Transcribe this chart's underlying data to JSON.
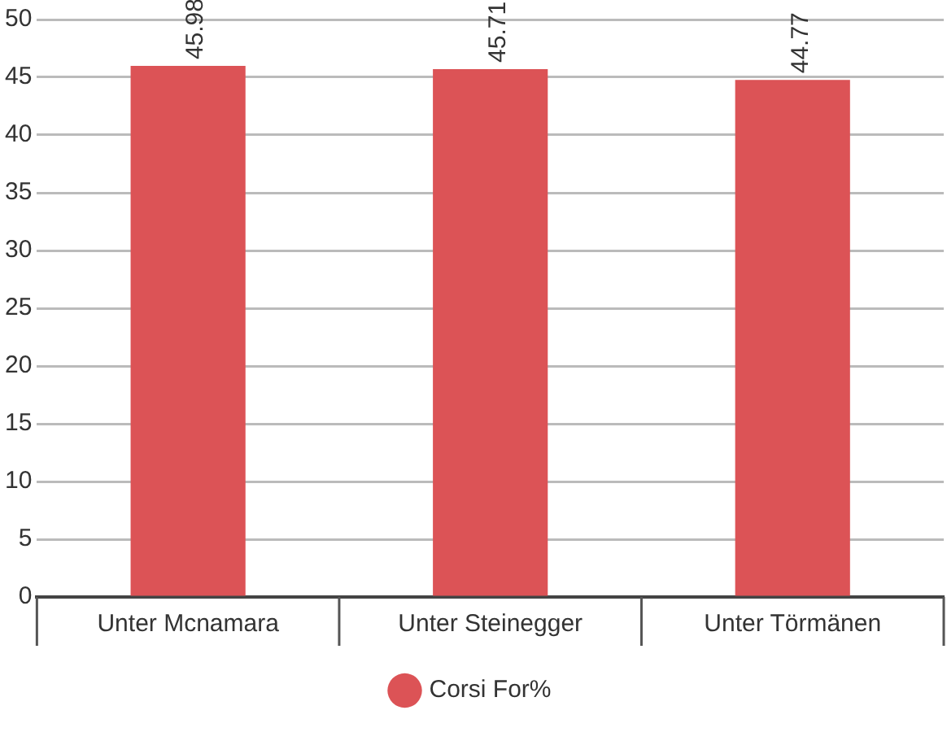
{
  "chart_data": {
    "type": "bar",
    "categories": [
      "Unter Mcnamara",
      "Unter Steinegger",
      "Unter Törmänen"
    ],
    "series": [
      {
        "name": "Corsi For%",
        "color": "#dc5356",
        "values": [
          45.98,
          45.71,
          44.77
        ]
      }
    ],
    "ylim": [
      0,
      50
    ],
    "yticks": [
      0,
      5,
      10,
      15,
      20,
      25,
      30,
      35,
      40,
      45,
      50
    ],
    "grid": "y",
    "legend": "bottom",
    "data_labels": true
  }
}
